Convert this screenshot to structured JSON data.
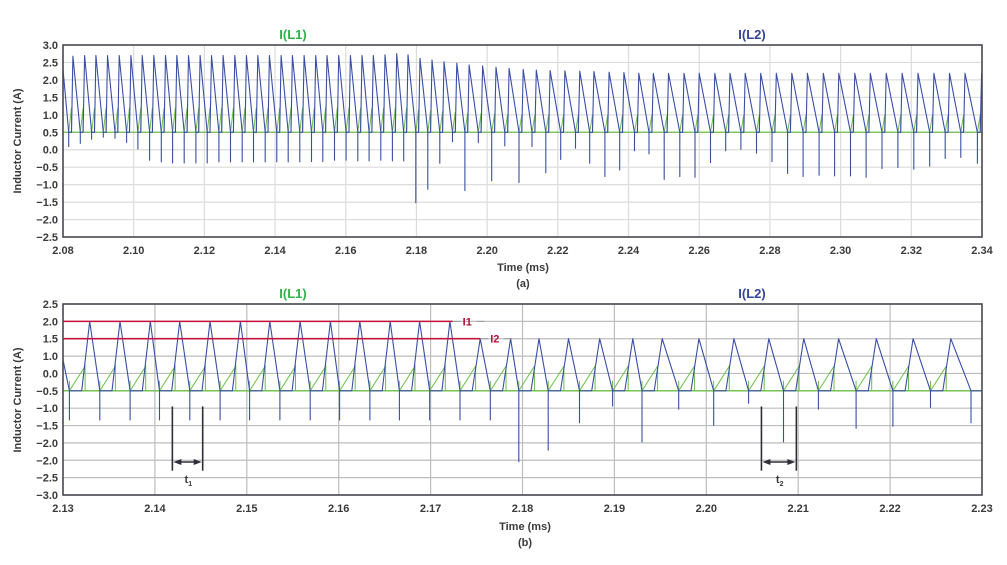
{
  "chart_data": [
    {
      "type": "line",
      "caption": "(a)",
      "xlabel": "Time (ms)",
      "ylabel": "Inductor Current (A)",
      "xlim": [
        2.08,
        2.34
      ],
      "ylim": [
        -2.5,
        3.0
      ],
      "x_tick_labels": [
        "2.08",
        "2.10",
        "2.12",
        "2.14",
        "2.16",
        "2.18",
        "2.20",
        "2.22",
        "2.24",
        "2.26",
        "2.28",
        "2.30",
        "2.32",
        "2.34"
      ],
      "y_tick_labels": [
        "3.0",
        "2.5",
        "2.0",
        "1.5",
        "1.0",
        "0.5",
        "0.0",
        "−0.5",
        "−1.0",
        "−1.5",
        "−2.0",
        "−2.5"
      ],
      "grid": true,
      "grid_color": "#dcdcdc",
      "legend": "top",
      "series": [
        {
          "name": "I(L1)",
          "color": "#6cc04a",
          "label_color": "#2fb24c",
          "baseline": 0.5,
          "ramp_peak_values": [
            1.2,
            1.2,
            1.2,
            1.2,
            1.2,
            1.2,
            1.2,
            1.2,
            1.2,
            1.2,
            1.2,
            1.2,
            1.2,
            1.2,
            1.2,
            1.2,
            1.2,
            1.2,
            1.2,
            1.2,
            1.2,
            1.2,
            1.2,
            1.2,
            1.2,
            1.2,
            1.2,
            1.2,
            1.2,
            1.2,
            1.15,
            1.12,
            1.1,
            1.08,
            1.05,
            1.05,
            1.03,
            1.02,
            1.0,
            1.0,
            1.0,
            1.0,
            1.0,
            1.0,
            1.0,
            1.0,
            1.0,
            1.0,
            1.0,
            1.0,
            1.0,
            1.0,
            1.0,
            1.0,
            1.0,
            1.0,
            1.0,
            1.0,
            1.0,
            1.0,
            1.0,
            1.0,
            1.0,
            1.0,
            1.0,
            1.0,
            1.0,
            1.0,
            1.0
          ]
        },
        {
          "name": "I(L2)",
          "color": "#3a4ea6",
          "label_color": "#33449a",
          "baseline": 0.5,
          "start_value": 2.3,
          "peak_times": [
            2.0828,
            2.0861,
            2.0893,
            2.0926,
            2.0959,
            2.0992,
            2.1024,
            2.1057,
            2.109,
            2.1122,
            2.1155,
            2.1188,
            2.122,
            2.1253,
            2.1286,
            2.1319,
            2.1351,
            2.1384,
            2.1417,
            2.1449,
            2.1482,
            2.1515,
            2.1547,
            2.158,
            2.1613,
            2.1646,
            2.1678,
            2.1711,
            2.1744,
            2.1776,
            2.181,
            2.1844,
            2.1878,
            2.1914,
            2.1949,
            2.1987,
            2.2025,
            2.2062,
            2.2102,
            2.2139,
            2.2178,
            2.222,
            2.2262,
            2.2302,
            2.2345,
            2.2387,
            2.2429,
            2.247,
            2.2513,
            2.2557,
            2.26,
            2.2644,
            2.2687,
            2.273,
            2.2774,
            2.2818,
            2.2862,
            2.2906,
            2.2951,
            2.2995,
            2.304,
            2.3084,
            2.3129,
            2.3174,
            2.3219,
            2.3264,
            2.3308,
            2.3352,
            2.3399
          ],
          "peak_values": [
            2.68,
            2.7,
            2.7,
            2.7,
            2.7,
            2.7,
            2.7,
            2.7,
            2.7,
            2.7,
            2.7,
            2.7,
            2.7,
            2.7,
            2.7,
            2.7,
            2.7,
            2.7,
            2.7,
            2.7,
            2.7,
            2.7,
            2.7,
            2.7,
            2.7,
            2.7,
            2.7,
            2.72,
            2.75,
            2.72,
            2.62,
            2.57,
            2.52,
            2.48,
            2.43,
            2.4,
            2.36,
            2.33,
            2.3,
            2.28,
            2.27,
            2.26,
            2.25,
            2.24,
            2.22,
            2.21,
            2.19,
            2.19,
            2.19,
            2.19,
            2.19,
            2.19,
            2.19,
            2.19,
            2.19,
            2.19,
            2.19,
            2.19,
            2.19,
            2.19,
            2.19,
            2.19,
            2.19,
            2.19,
            2.19,
            2.19,
            2.19,
            2.19,
            2.19
          ],
          "spike_values": [
            0.09,
            0.18,
            0.3,
            0.36,
            0.33,
            0.21,
            0.02,
            -0.3,
            -0.35,
            -0.38,
            -0.38,
            -0.38,
            -0.38,
            -0.35,
            -0.35,
            -0.35,
            -0.35,
            -0.35,
            -0.35,
            -0.35,
            -0.35,
            -0.34,
            -0.34,
            -0.3,
            -0.3,
            -0.32,
            -0.32,
            -0.3,
            -0.32,
            -0.32,
            -1.52,
            -1.13,
            -0.39,
            0.23,
            -1.17,
            0.2,
            -0.89,
            0.11,
            -0.94,
            0.09,
            -0.66,
            -0.28,
            0.04,
            -0.39,
            -0.77,
            -0.58,
            -0.03,
            -0.12,
            -0.85,
            -0.77,
            -0.79,
            -0.37,
            -0.03,
            0.01,
            -0.1,
            -0.34,
            -0.68,
            -0.77,
            -0.73,
            -0.75,
            -0.75,
            -0.79,
            -0.54,
            -0.51,
            -0.56,
            -0.47,
            -0.25,
            -0.22,
            -0.39
          ]
        }
      ]
    },
    {
      "type": "line",
      "caption": "(b)",
      "xlabel": "Time (ms)",
      "ylabel": "Inductor Current (A)",
      "xlim": [
        2.13,
        2.23
      ],
      "ylim": [
        -3.0,
        2.5
      ],
      "x_tick_labels": [
        "2.13",
        "2.14",
        "2.15",
        "2.16",
        "2.17",
        "2.18",
        "2.19",
        "2.20",
        "2.21",
        "2.22",
        "2.23"
      ],
      "y_tick_labels": [
        "2.5",
        "2.0",
        "1.5",
        "1.0",
        "0.0",
        "−0.5",
        "−1.0",
        "−1.5",
        "−2.0",
        "−2.0",
        "−2.5",
        "−3.0"
      ],
      "grid": true,
      "grid_color": "#bdbdbd",
      "legend": "top",
      "series": [
        {
          "name": "I(L1)",
          "color": "#6cc04a",
          "label_color": "#2fb24c",
          "baseline": 0.0,
          "spike_value": 0.29,
          "ramp_peak_values": [
            0.71,
            0.71,
            0.71,
            0.71,
            0.71,
            0.71,
            0.71,
            0.71,
            0.71,
            0.71,
            0.71,
            0.71,
            0.71,
            0.71,
            0.71,
            0.71,
            0.71,
            0.71,
            0.71,
            0.71,
            0.71,
            0.71,
            0.71,
            0.71,
            0.71,
            0.71,
            0.71,
            0.71
          ]
        },
        {
          "name": "I(L2)",
          "color": "#3a4ea6",
          "label_color": "#33449a",
          "baseline": 0.0,
          "start_value": 0.89,
          "peak_times": [
            2.1329,
            2.1362,
            2.1395,
            2.1427,
            2.146,
            2.1493,
            2.1525,
            2.1558,
            2.1591,
            2.1623,
            2.1656,
            2.1688,
            2.1721,
            2.1754,
            2.1787,
            2.1818,
            2.185,
            2.1884,
            2.192,
            2.1952,
            2.1992,
            2.203,
            2.2068,
            2.2106,
            2.2144,
            2.2185,
            2.2225,
            2.2266
          ],
          "peak_values": [
            2.0,
            2.0,
            2.0,
            2.0,
            2.0,
            2.0,
            2.0,
            2.0,
            2.0,
            2.0,
            2.0,
            2.0,
            2.0,
            1.5,
            1.5,
            1.5,
            1.5,
            1.5,
            1.5,
            1.5,
            1.5,
            1.5,
            1.5,
            1.5,
            1.5,
            1.5,
            1.5,
            1.5
          ],
          "spike_values": [
            -0.84,
            -0.84,
            -0.84,
            -0.84,
            -0.84,
            -0.84,
            -0.84,
            -0.84,
            -0.84,
            -0.84,
            -0.84,
            -0.84,
            -0.84,
            -0.84,
            -0.84,
            -2.04,
            -1.71,
            -0.92,
            -0.44,
            -1.47,
            -0.53,
            -0.99,
            -0.36,
            -1.47,
            -0.53,
            -1.08,
            -1.02,
            -0.48
          ],
          "trailing_spike": {
            "t": 2.2288,
            "value": -0.92
          }
        }
      ],
      "levels": [
        {
          "label": "I1",
          "value": 2.0,
          "end": 2.1724,
          "color": "#c8103c"
        },
        {
          "label": "I2",
          "value": 1.5,
          "end": 2.1754,
          "color": "#c8103c"
        }
      ],
      "intervals": [
        {
          "label": "t",
          "sub": "1",
          "from": 2.1419,
          "to": 2.1452
        },
        {
          "label": "t",
          "sub": "2",
          "from": 2.206,
          "to": 2.2098
        }
      ]
    }
  ]
}
